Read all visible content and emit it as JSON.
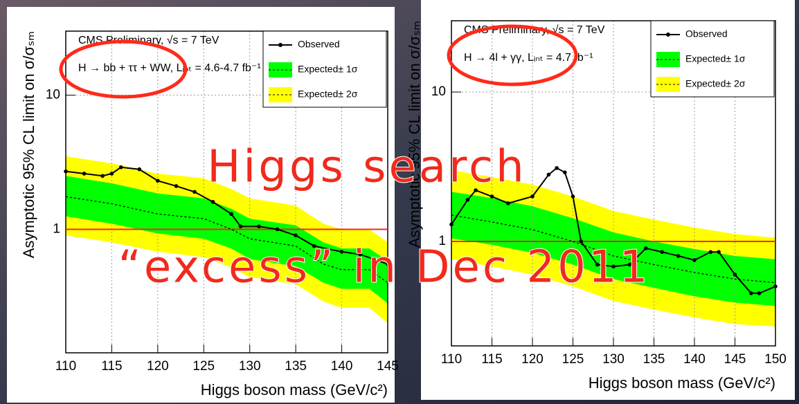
{
  "overlay_text": [
    "Higgs search",
    "“excess” in Dec 2011"
  ],
  "chart_data": [
    {
      "type": "line",
      "scale": "log",
      "annotations": [
        "CMS Preliminary, √s = 7 TeV",
        "H → bb + ττ + WW, Lᵢₙₜ = 4.6-4.7 fb⁻¹"
      ],
      "xlabel": "Higgs boson mass (GeV/c²)",
      "ylabel": "Asymptotic 95% CL limit on σ/σₛₘ",
      "xlim": [
        110,
        145
      ],
      "xticks": [
        110,
        115,
        120,
        125,
        130,
        135,
        140,
        145
      ],
      "ylim": [
        0.12,
        30
      ],
      "yticks": [
        1,
        10
      ],
      "grid": true,
      "reference_line": 1,
      "reference_color": "#ff2020",
      "series": [
        {
          "name": "Observed",
          "color": "#000000",
          "x": [
            110,
            112,
            114,
            115,
            116,
            118,
            120,
            122,
            124,
            126,
            128,
            129,
            131,
            133,
            135,
            137,
            140,
            142,
            145
          ],
          "values": [
            2.7,
            2.6,
            2.5,
            2.6,
            2.9,
            2.8,
            2.3,
            2.1,
            1.9,
            1.6,
            1.3,
            1.05,
            1.05,
            1.0,
            0.9,
            0.75,
            0.68,
            0.65,
            0.55
          ]
        },
        {
          "name": "Expected± 1σ",
          "color": "#00ff00",
          "x": [
            110,
            115,
            120,
            125,
            128,
            130,
            135,
            138,
            140,
            143,
            145
          ],
          "values": [
            1.75,
            1.55,
            1.3,
            1.2,
            1.0,
            0.85,
            0.75,
            0.55,
            0.5,
            0.5,
            0.4
          ],
          "low": [
            1.25,
            1.1,
            0.93,
            0.85,
            0.72,
            0.6,
            0.53,
            0.4,
            0.36,
            0.36,
            0.28
          ],
          "high": [
            2.5,
            2.2,
            1.85,
            1.7,
            1.42,
            1.2,
            1.07,
            0.8,
            0.72,
            0.72,
            0.58
          ]
        },
        {
          "name": "Expected± 2σ",
          "color": "#ffff00",
          "x": [
            110,
            115,
            120,
            125,
            128,
            130,
            135,
            138,
            140,
            143,
            145
          ],
          "low": [
            0.9,
            0.8,
            0.68,
            0.62,
            0.52,
            0.44,
            0.39,
            0.29,
            0.26,
            0.26,
            0.2
          ],
          "high": [
            3.5,
            3.1,
            2.6,
            2.4,
            2.0,
            1.7,
            1.5,
            1.1,
            1.0,
            1.0,
            0.8
          ]
        }
      ]
    },
    {
      "type": "line",
      "scale": "log",
      "annotations": [
        "CMS Preliminary, √s = 7 TeV",
        "H → 4l + γγ, Lᵢₙₜ = 4.7 fb⁻¹"
      ],
      "xlabel": "Higgs boson mass (GeV/c²)",
      "ylabel": "Asymptotic 95% CL limit on σ/σₛₘ",
      "xlim": [
        110,
        150
      ],
      "xticks": [
        110,
        115,
        120,
        125,
        130,
        135,
        140,
        145,
        150
      ],
      "ylim": [
        0.2,
        30
      ],
      "yticks": [
        1,
        10
      ],
      "grid": true,
      "reference_line": 1,
      "reference_color": "#ff2020",
      "series": [
        {
          "name": "Observed",
          "color": "#000000",
          "x": [
            110,
            112,
            113,
            115,
            117,
            120,
            122,
            123,
            124,
            125,
            126,
            128,
            130,
            132,
            134,
            136,
            138,
            140,
            142,
            143,
            145,
            147,
            148,
            150
          ],
          "values": [
            1.3,
            1.9,
            2.2,
            2.0,
            1.8,
            2.0,
            2.8,
            3.1,
            2.9,
            2.0,
            1.0,
            0.7,
            0.68,
            0.7,
            0.9,
            0.85,
            0.8,
            0.75,
            0.85,
            0.85,
            0.6,
            0.45,
            0.45,
            0.5
          ]
        },
        {
          "name": "Expected± 1σ",
          "color": "#00ff00",
          "x": [
            110,
            115,
            120,
            125,
            130,
            135,
            140,
            145,
            150
          ],
          "values": [
            1.5,
            1.35,
            1.2,
            1.0,
            0.8,
            0.7,
            0.62,
            0.56,
            0.53
          ],
          "low": [
            1.05,
            0.95,
            0.84,
            0.7,
            0.56,
            0.49,
            0.43,
            0.39,
            0.37
          ],
          "high": [
            2.15,
            1.95,
            1.72,
            1.43,
            1.15,
            1.0,
            0.89,
            0.8,
            0.76
          ]
        },
        {
          "name": "Expected± 2σ",
          "color": "#ffff00",
          "x": [
            110,
            115,
            120,
            125,
            130,
            135,
            140,
            145,
            150
          ],
          "low": [
            0.76,
            0.68,
            0.6,
            0.5,
            0.4,
            0.35,
            0.31,
            0.28,
            0.27
          ],
          "high": [
            3.0,
            2.7,
            2.4,
            2.0,
            1.6,
            1.4,
            1.24,
            1.12,
            1.06
          ]
        }
      ]
    }
  ]
}
